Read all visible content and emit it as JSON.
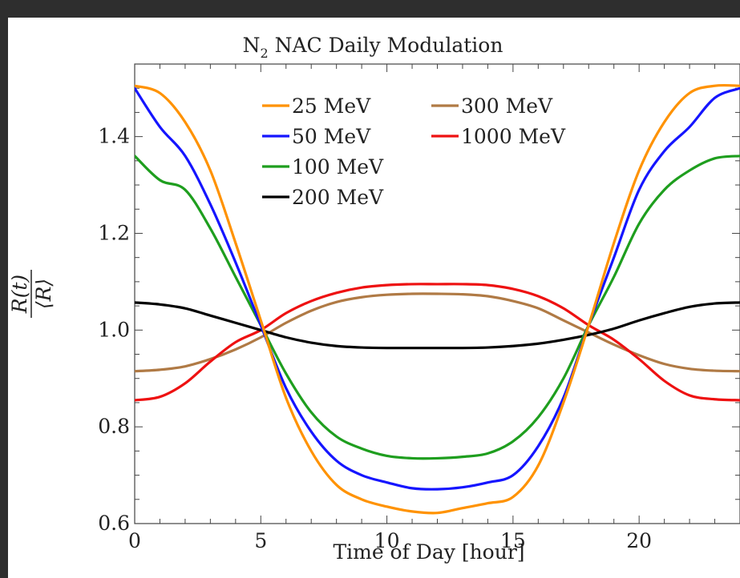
{
  "chart_data": {
    "type": "line",
    "title_main": "N",
    "title_sub": "2",
    "title_rest": " NAC Daily Modulation",
    "xlabel": "Time of Day [hour]",
    "ylabel_num": "R(t)",
    "ylabel_den": "⟨R⟩",
    "xlim": [
      0,
      24
    ],
    "ylim": [
      0.6,
      1.55
    ],
    "xticks": [
      "0",
      "5",
      "10",
      "15",
      "20"
    ],
    "yticks": [
      "0.6",
      "0.8",
      "1.0",
      "1.2",
      "1.4"
    ],
    "grid": false,
    "legend_placement": "top-center",
    "series": [
      {
        "name": "25 MeV",
        "color": "#ff9200",
        "x": [
          0,
          1,
          2,
          3,
          4,
          5,
          6,
          7,
          8,
          9,
          10,
          11,
          12,
          13,
          14,
          15,
          16,
          17,
          18,
          19,
          20,
          21,
          22,
          23,
          24
        ],
        "y": [
          1.505,
          1.49,
          1.43,
          1.33,
          1.18,
          1.02,
          0.86,
          0.75,
          0.68,
          0.65,
          0.635,
          0.625,
          0.622,
          0.632,
          0.642,
          0.655,
          0.72,
          0.85,
          1.01,
          1.18,
          1.33,
          1.43,
          1.49,
          1.505,
          1.505
        ]
      },
      {
        "name": "50 MeV",
        "color": "#1515ff",
        "x": [
          0,
          1,
          2,
          3,
          4,
          5,
          6,
          7,
          8,
          9,
          10,
          11,
          12,
          13,
          14,
          15,
          16,
          17,
          18,
          19,
          20,
          21,
          22,
          23,
          24
        ],
        "y": [
          1.5,
          1.42,
          1.36,
          1.26,
          1.14,
          1.01,
          0.88,
          0.79,
          0.73,
          0.7,
          0.685,
          0.673,
          0.671,
          0.675,
          0.685,
          0.7,
          0.76,
          0.86,
          1.01,
          1.15,
          1.29,
          1.37,
          1.42,
          1.48,
          1.5
        ]
      },
      {
        "name": "100 MeV",
        "color": "#1e9e1e",
        "x": [
          0,
          1,
          2,
          3,
          4,
          5,
          6,
          7,
          8,
          9,
          10,
          11,
          12,
          13,
          14,
          15,
          16,
          17,
          18,
          19,
          20,
          21,
          22,
          23,
          24
        ],
        "y": [
          1.36,
          1.31,
          1.29,
          1.21,
          1.11,
          1.01,
          0.91,
          0.83,
          0.78,
          0.755,
          0.74,
          0.735,
          0.735,
          0.738,
          0.745,
          0.77,
          0.82,
          0.9,
          1.01,
          1.11,
          1.22,
          1.29,
          1.33,
          1.355,
          1.36
        ]
      },
      {
        "name": "200 MeV",
        "color": "#000000",
        "x": [
          0,
          1,
          2,
          3,
          4,
          5,
          6,
          7,
          8,
          9,
          10,
          11,
          12,
          13,
          14,
          15,
          16,
          17,
          18,
          19,
          20,
          21,
          22,
          23,
          24
        ],
        "y": [
          1.057,
          1.053,
          1.045,
          1.03,
          1.015,
          1.0,
          0.985,
          0.974,
          0.967,
          0.964,
          0.963,
          0.963,
          0.963,
          0.963,
          0.964,
          0.967,
          0.972,
          0.98,
          0.99,
          1.003,
          1.02,
          1.035,
          1.048,
          1.055,
          1.057
        ]
      },
      {
        "name": "300 MeV",
        "color": "#b07a45",
        "x": [
          0,
          1,
          2,
          3,
          4,
          5,
          6,
          7,
          8,
          9,
          10,
          11,
          12,
          13,
          14,
          15,
          16,
          17,
          18,
          19,
          20,
          21,
          22,
          23,
          24
        ],
        "y": [
          0.915,
          0.918,
          0.925,
          0.94,
          0.96,
          0.985,
          1.015,
          1.04,
          1.058,
          1.068,
          1.073,
          1.075,
          1.075,
          1.074,
          1.07,
          1.06,
          1.045,
          1.02,
          0.995,
          0.97,
          0.948,
          0.93,
          0.92,
          0.916,
          0.915
        ]
      },
      {
        "name": "1000 MeV",
        "color": "#ee1111",
        "x": [
          0,
          1,
          2,
          3,
          4,
          5,
          6,
          7,
          8,
          9,
          10,
          11,
          12,
          13,
          14,
          15,
          16,
          17,
          18,
          19,
          20,
          21,
          22,
          23,
          24
        ],
        "y": [
          0.855,
          0.862,
          0.89,
          0.935,
          0.975,
          1.0,
          1.035,
          1.06,
          1.077,
          1.088,
          1.093,
          1.095,
          1.095,
          1.095,
          1.093,
          1.085,
          1.07,
          1.045,
          1.01,
          0.98,
          0.94,
          0.895,
          0.865,
          0.857,
          0.855
        ]
      }
    ]
  }
}
